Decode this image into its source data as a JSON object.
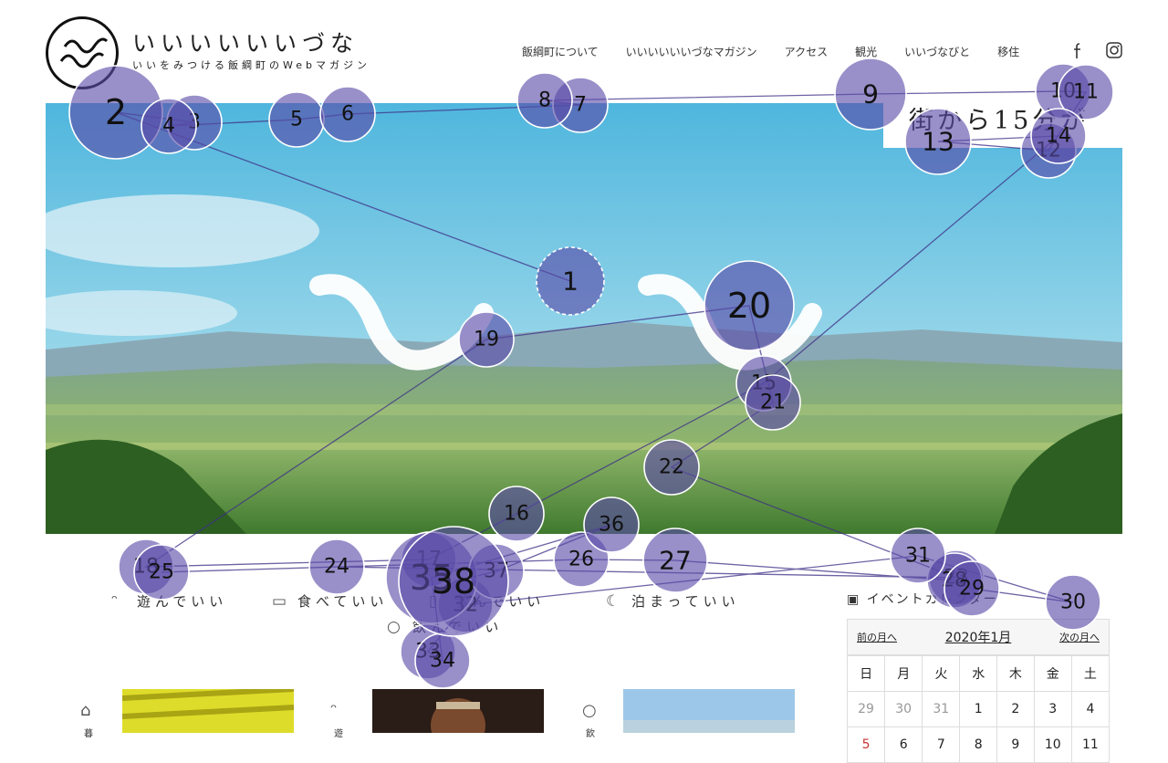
{
  "header": {
    "logo_title": "いいいいいいづな",
    "logo_sub": "いいをみつける飯綱町のWebマガジン",
    "nav": [
      "飯綱町について",
      "いいいいいいづなマガジン",
      "アクセス",
      "観光",
      "いいづなびと",
      "移住"
    ],
    "social_icons": [
      "facebook-icon",
      "instagram-icon"
    ]
  },
  "hero": {
    "caption": "街から15分が"
  },
  "categories": [
    {
      "label": "遊んでいい",
      "icon": "footprints-icon"
    },
    {
      "label": "食べていい",
      "icon": "bowl-icon"
    },
    {
      "label": "学んでいい",
      "icon": "book-icon"
    },
    {
      "label": "泊まっていい",
      "icon": "moon-icon"
    },
    {
      "label": "飲んでいい",
      "icon": "apple-icon"
    }
  ],
  "events": {
    "heading": "イベントカレンダー",
    "prev": "前の月へ",
    "title": "2020年1月",
    "next": "次の月へ",
    "weekdays": [
      "日",
      "月",
      "火",
      "水",
      "木",
      "金",
      "土"
    ],
    "week1": [
      "29",
      "30",
      "31",
      "1",
      "2",
      "3",
      "4"
    ],
    "week2": [
      "5",
      "6",
      "7",
      "8",
      "9",
      "10",
      "11"
    ]
  },
  "posts": [
    {
      "label": "暮",
      "icon": "house-icon"
    },
    {
      "label": "遊",
      "icon": "footprints-icon"
    },
    {
      "label": "飲",
      "icon": "apple-icon"
    }
  ],
  "overlay": {
    "fill": "#5a4aa8",
    "stroke": "#3d2f86",
    "points": [
      {
        "n": "1"
      },
      {
        "n": "2"
      },
      {
        "n": "3"
      },
      {
        "n": "4"
      },
      {
        "n": "5"
      },
      {
        "n": "6"
      },
      {
        "n": "7"
      },
      {
        "n": "8"
      },
      {
        "n": "9"
      },
      {
        "n": "10"
      },
      {
        "n": "11"
      },
      {
        "n": "12"
      },
      {
        "n": "13"
      },
      {
        "n": "14"
      },
      {
        "n": "15"
      },
      {
        "n": "16"
      },
      {
        "n": "17"
      },
      {
        "n": "18"
      },
      {
        "n": "19"
      },
      {
        "n": "20"
      },
      {
        "n": "21"
      },
      {
        "n": "22"
      },
      {
        "n": "23"
      },
      {
        "n": "24"
      },
      {
        "n": "25"
      },
      {
        "n": "26"
      },
      {
        "n": "27"
      },
      {
        "n": "28"
      },
      {
        "n": "29"
      },
      {
        "n": "30"
      },
      {
        "n": "31"
      },
      {
        "n": "32"
      },
      {
        "n": "33"
      },
      {
        "n": "34"
      },
      {
        "n": "35"
      },
      {
        "n": "36"
      },
      {
        "n": "37"
      },
      {
        "n": "38"
      }
    ]
  }
}
